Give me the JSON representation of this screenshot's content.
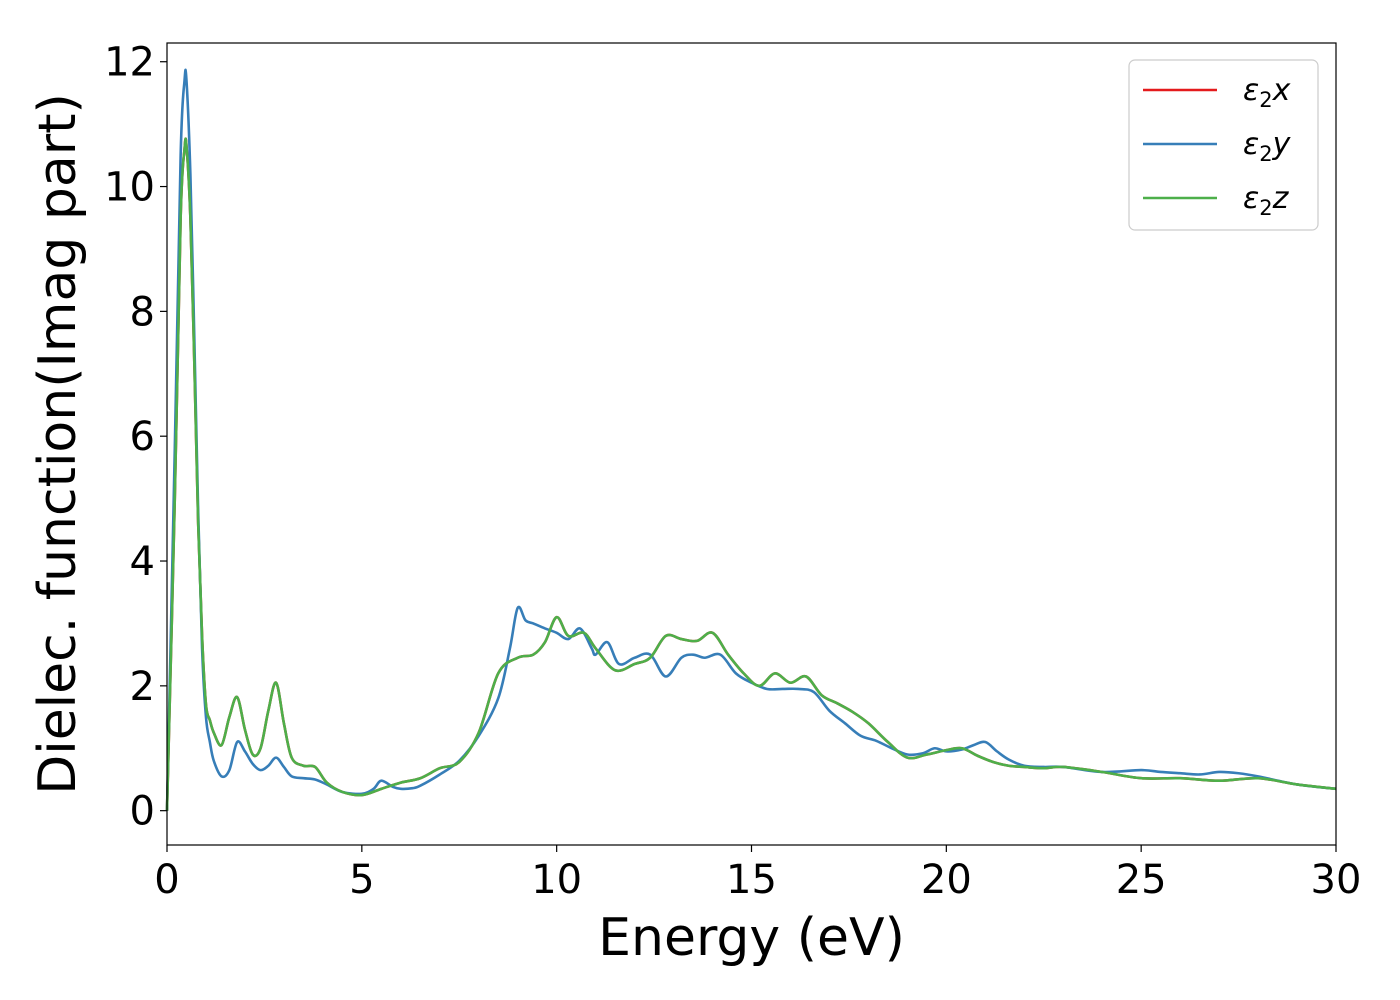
{
  "chart_data": {
    "type": "line",
    "xlabel": "Energy (eV)",
    "ylabel": "Dielec. function(Imag part)",
    "xlim": [
      0,
      30
    ],
    "ylim": [
      -0.55,
      12.3
    ],
    "xticks": [
      0,
      5,
      10,
      15,
      20,
      25,
      30
    ],
    "yticks": [
      0,
      2,
      4,
      6,
      8,
      10,
      12
    ],
    "grid": false,
    "legend_position": "top-right",
    "series": [
      {
        "name": "ε2x",
        "label_main": "ε",
        "label_sub": "2",
        "label_axis": "x",
        "color": "#e41a1c",
        "x": [
          0,
          0.2,
          0.35,
          0.45,
          0.5,
          0.6,
          0.7,
          0.8,
          0.9,
          1.0,
          1.1,
          1.2,
          1.4,
          1.6,
          1.8,
          2.0,
          2.2,
          2.4,
          2.6,
          2.8,
          3.0,
          3.2,
          3.5,
          3.8,
          4.1,
          4.5,
          5.0,
          5.5,
          6.0,
          6.5,
          7.0,
          7.5,
          8.0,
          8.5,
          9.0,
          9.4,
          9.7,
          10.0,
          10.3,
          10.7,
          11.0,
          11.5,
          12.0,
          12.4,
          12.8,
          13.2,
          13.6,
          14.0,
          14.4,
          14.8,
          15.2,
          15.6,
          16.0,
          16.4,
          16.8,
          17.2,
          17.6,
          18.0,
          18.5,
          19.0,
          19.5,
          20.0,
          20.4,
          20.8,
          21.2,
          21.6,
          22.0,
          22.5,
          23.0,
          24.0,
          25.0,
          26.0,
          27.0,
          28.0,
          29.0,
          30.0
        ],
        "values": [
          0,
          5.0,
          9.5,
          10.6,
          10.65,
          9.5,
          7.2,
          4.6,
          2.8,
          1.7,
          1.45,
          1.25,
          1.05,
          1.5,
          1.82,
          1.3,
          0.9,
          1.0,
          1.6,
          2.05,
          1.4,
          0.85,
          0.72,
          0.7,
          0.45,
          0.3,
          0.25,
          0.35,
          0.45,
          0.52,
          0.68,
          0.78,
          1.25,
          2.2,
          2.45,
          2.5,
          2.7,
          3.1,
          2.8,
          2.85,
          2.6,
          2.25,
          2.35,
          2.45,
          2.8,
          2.75,
          2.72,
          2.85,
          2.5,
          2.2,
          2.0,
          2.2,
          2.05,
          2.15,
          1.85,
          1.72,
          1.58,
          1.4,
          1.1,
          0.85,
          0.9,
          0.97,
          1.0,
          0.88,
          0.78,
          0.72,
          0.7,
          0.68,
          0.7,
          0.62,
          0.52,
          0.52,
          0.48,
          0.52,
          0.42,
          0.35
        ]
      },
      {
        "name": "ε2y",
        "label_main": "ε",
        "label_sub": "2",
        "label_axis": "y",
        "color": "#377eb8",
        "x": [
          0,
          0.2,
          0.35,
          0.45,
          0.5,
          0.6,
          0.7,
          0.8,
          0.9,
          1.0,
          1.1,
          1.2,
          1.4,
          1.6,
          1.8,
          2.0,
          2.2,
          2.4,
          2.6,
          2.8,
          3.0,
          3.2,
          3.5,
          3.8,
          4.1,
          4.5,
          5.0,
          5.3,
          5.5,
          5.8,
          6.0,
          6.3,
          6.5,
          7.0,
          7.5,
          8.0,
          8.5,
          8.8,
          9.0,
          9.2,
          9.4,
          9.7,
          10.0,
          10.3,
          10.6,
          10.9,
          11.0,
          11.3,
          11.6,
          12.0,
          12.4,
          12.8,
          13.2,
          13.5,
          13.8,
          14.2,
          14.6,
          15.0,
          15.4,
          15.8,
          16.2,
          16.6,
          17.0,
          17.4,
          17.8,
          18.2,
          18.6,
          19.0,
          19.4,
          19.7,
          20.0,
          20.4,
          20.7,
          21.0,
          21.3,
          21.6,
          22.0,
          22.5,
          23.0,
          24.0,
          25.0,
          25.5,
          26.0,
          26.5,
          27.0,
          27.5,
          28.0,
          29.0,
          30.0
        ],
        "values": [
          0,
          5.8,
          10.5,
          11.7,
          11.7,
          10.2,
          7.6,
          4.8,
          2.6,
          1.5,
          1.1,
          0.8,
          0.55,
          0.65,
          1.1,
          0.95,
          0.75,
          0.65,
          0.72,
          0.85,
          0.7,
          0.55,
          0.52,
          0.5,
          0.42,
          0.3,
          0.27,
          0.35,
          0.48,
          0.38,
          0.35,
          0.36,
          0.4,
          0.58,
          0.8,
          1.2,
          1.8,
          2.6,
          3.25,
          3.05,
          3.0,
          2.92,
          2.85,
          2.75,
          2.92,
          2.6,
          2.5,
          2.7,
          2.35,
          2.45,
          2.5,
          2.15,
          2.45,
          2.5,
          2.45,
          2.5,
          2.2,
          2.05,
          1.95,
          1.95,
          1.95,
          1.9,
          1.6,
          1.4,
          1.2,
          1.12,
          1.0,
          0.9,
          0.92,
          1.0,
          0.95,
          0.98,
          1.05,
          1.1,
          0.95,
          0.82,
          0.72,
          0.7,
          0.7,
          0.62,
          0.65,
          0.62,
          0.6,
          0.58,
          0.62,
          0.6,
          0.55,
          0.42,
          0.35
        ]
      },
      {
        "name": "ε2z",
        "label_main": "ε",
        "label_sub": "2",
        "label_axis": "z",
        "color": "#4daf4a",
        "x": [
          0,
          0.2,
          0.35,
          0.45,
          0.5,
          0.6,
          0.7,
          0.8,
          0.9,
          1.0,
          1.1,
          1.2,
          1.4,
          1.6,
          1.8,
          2.0,
          2.2,
          2.4,
          2.6,
          2.8,
          3.0,
          3.2,
          3.5,
          3.8,
          4.1,
          4.5,
          5.0,
          5.5,
          6.0,
          6.5,
          7.0,
          7.5,
          8.0,
          8.5,
          9.0,
          9.4,
          9.7,
          10.0,
          10.3,
          10.7,
          11.0,
          11.5,
          12.0,
          12.4,
          12.8,
          13.2,
          13.6,
          14.0,
          14.4,
          14.8,
          15.2,
          15.6,
          16.0,
          16.4,
          16.8,
          17.2,
          17.6,
          18.0,
          18.5,
          19.0,
          19.5,
          20.0,
          20.4,
          20.8,
          21.2,
          21.6,
          22.0,
          22.5,
          23.0,
          24.0,
          25.0,
          26.0,
          27.0,
          28.0,
          29.0,
          30.0
        ],
        "values": [
          0,
          5.0,
          9.5,
          10.6,
          10.65,
          9.5,
          7.2,
          4.6,
          2.8,
          1.7,
          1.45,
          1.25,
          1.05,
          1.5,
          1.82,
          1.3,
          0.9,
          1.0,
          1.6,
          2.05,
          1.4,
          0.85,
          0.72,
          0.7,
          0.45,
          0.3,
          0.25,
          0.35,
          0.45,
          0.52,
          0.68,
          0.78,
          1.25,
          2.2,
          2.45,
          2.5,
          2.7,
          3.1,
          2.8,
          2.85,
          2.6,
          2.25,
          2.35,
          2.45,
          2.8,
          2.75,
          2.72,
          2.85,
          2.5,
          2.2,
          2.0,
          2.2,
          2.05,
          2.15,
          1.85,
          1.72,
          1.58,
          1.4,
          1.1,
          0.85,
          0.9,
          0.97,
          1.0,
          0.88,
          0.78,
          0.72,
          0.7,
          0.68,
          0.7,
          0.62,
          0.52,
          0.52,
          0.48,
          0.52,
          0.42,
          0.35
        ]
      }
    ]
  }
}
